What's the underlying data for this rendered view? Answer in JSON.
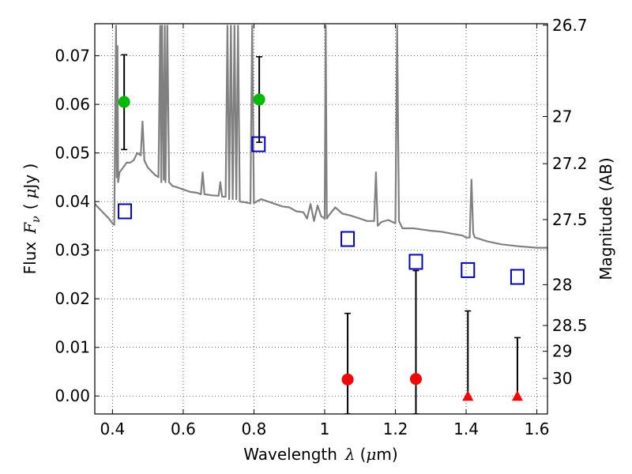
{
  "chart_data": {
    "type": "scatter",
    "xlabel": "Wavelength",
    "xlabel_symbol": "λ",
    "xlabel_unit_open": "(",
    "xlabel_unit": "μ",
    "xlabel_unit_rest": "m)",
    "ylabel": "Flux",
    "ylabel_symbol": "F",
    "ylabel_sub": "ν",
    "ylabel_unit_open": "(",
    "ylabel_unit_mu": "μ",
    "ylabel_unit_rest": "Jy )",
    "y2label": "Magnitude (AB)",
    "xlim": [
      0.35,
      1.63
    ],
    "ylim": [
      -0.0037,
      0.0766
    ],
    "grid": true,
    "x_ticks": [
      {
        "value": 0.4,
        "label": "0.4"
      },
      {
        "value": 0.6,
        "label": "0.6"
      },
      {
        "value": 0.8,
        "label": "0.8"
      },
      {
        "value": 1.0,
        "label": "1"
      },
      {
        "value": 1.2,
        "label": "1.2"
      },
      {
        "value": 1.4,
        "label": "1.4"
      },
      {
        "value": 1.6,
        "label": "1.6"
      }
    ],
    "y_ticks": [
      {
        "value": 0.0,
        "label": "0.00"
      },
      {
        "value": 0.01,
        "label": "0.01"
      },
      {
        "value": 0.02,
        "label": "0.02"
      },
      {
        "value": 0.03,
        "label": "0.03"
      },
      {
        "value": 0.04,
        "label": "0.04"
      },
      {
        "value": 0.05,
        "label": "0.05"
      },
      {
        "value": 0.06,
        "label": "0.06"
      },
      {
        "value": 0.07,
        "label": "0.07"
      }
    ],
    "y2_ticks": [
      {
        "flux": 0.0763,
        "label": "26.7"
      },
      {
        "flux": 0.0575,
        "label": "27"
      },
      {
        "flux": 0.0478,
        "label": "27.2"
      },
      {
        "flux": 0.0363,
        "label": "27.5"
      },
      {
        "flux": 0.0229,
        "label": "28"
      },
      {
        "flux": 0.0145,
        "label": "28.5"
      },
      {
        "flux": 0.0092,
        "label": "29"
      },
      {
        "flux": 0.0036,
        "label": "30"
      }
    ],
    "series": [
      {
        "name": "model_spectrum",
        "kind": "line",
        "color": "#808080",
        "x": [
          0.35,
          0.37,
          0.39,
          0.4,
          0.405,
          0.41,
          0.412,
          0.414,
          0.416,
          0.42,
          0.43,
          0.44,
          0.45,
          0.46,
          0.47,
          0.48,
          0.485,
          0.49,
          0.5,
          0.52,
          0.53,
          0.535,
          0.538,
          0.54,
          0.545,
          0.548,
          0.55,
          0.555,
          0.56,
          0.57,
          0.58,
          0.6,
          0.62,
          0.64,
          0.65,
          0.655,
          0.66,
          0.68,
          0.7,
          0.705,
          0.71,
          0.72,
          0.725,
          0.73,
          0.735,
          0.74,
          0.745,
          0.75,
          0.755,
          0.76,
          0.78,
          0.79,
          0.795,
          0.8,
          0.82,
          0.84,
          0.86,
          0.88,
          0.9,
          0.92,
          0.94,
          0.95,
          0.96,
          0.97,
          0.98,
          0.99,
          1.0,
          1.003,
          1.006,
          1.01,
          1.03,
          1.05,
          1.07,
          1.1,
          1.12,
          1.14,
          1.145,
          1.15,
          1.16,
          1.18,
          1.2,
          1.205,
          1.21,
          1.22,
          1.25,
          1.28,
          1.3,
          1.33,
          1.36,
          1.39,
          1.4,
          1.41,
          1.415,
          1.42,
          1.425,
          1.43,
          1.46,
          1.5,
          1.55,
          1.6,
          1.63
        ],
        "y": [
          0.0395,
          0.038,
          0.0365,
          0.0355,
          0.0352,
          0.0762,
          0.045,
          0.072,
          0.044,
          0.046,
          0.047,
          0.048,
          0.048,
          0.0485,
          0.05,
          0.0495,
          0.0565,
          0.0485,
          0.047,
          0.0455,
          0.045,
          0.0762,
          0.044,
          0.0762,
          0.0445,
          0.0762,
          0.044,
          0.0762,
          0.044,
          0.0432,
          0.043,
          0.0425,
          0.042,
          0.0418,
          0.0415,
          0.046,
          0.0415,
          0.0413,
          0.0412,
          0.044,
          0.041,
          0.041,
          0.0762,
          0.0405,
          0.0762,
          0.0405,
          0.0762,
          0.0405,
          0.0762,
          0.04,
          0.0398,
          0.0396,
          0.0762,
          0.0397,
          0.0405,
          0.04,
          0.0395,
          0.039,
          0.0388,
          0.038,
          0.0378,
          0.0365,
          0.0395,
          0.036,
          0.0392,
          0.037,
          0.0365,
          0.0762,
          0.0365,
          0.037,
          0.0388,
          0.0375,
          0.0372,
          0.0365,
          0.036,
          0.036,
          0.046,
          0.035,
          0.0358,
          0.0362,
          0.0355,
          0.0762,
          0.036,
          0.0345,
          0.0345,
          0.0342,
          0.034,
          0.0338,
          0.0334,
          0.033,
          0.0326,
          0.0326,
          0.0445,
          0.0335,
          0.0326,
          0.0325,
          0.0318,
          0.0312,
          0.0308,
          0.0305,
          0.0305
        ]
      },
      {
        "name": "detections",
        "kind": "points",
        "color": "#00bb00",
        "x": [
          0.433,
          0.815
        ],
        "y": [
          0.0605,
          0.061
        ],
        "err_low": [
          0.0507,
          0.0522
        ],
        "err_high": [
          0.0702,
          0.0698
        ]
      },
      {
        "name": "non_detections",
        "kind": "points",
        "color": "#ff0000",
        "x": [
          1.065,
          1.258
        ],
        "y": [
          0.0034,
          0.0035
        ],
        "err_low": [
          -0.0037,
          -0.0037
        ],
        "err_high": [
          0.017,
          0.0258
        ]
      },
      {
        "name": "upper_limits",
        "kind": "triangles",
        "color": "#ff0000",
        "x": [
          1.405,
          1.545
        ],
        "y": [
          0.0,
          0.0
        ],
        "err_low": [
          -0.0002,
          -0.0002
        ],
        "err_high": [
          0.0175,
          0.012
        ]
      },
      {
        "name": "model_photometry",
        "kind": "squares",
        "color": "#0000cc",
        "x": [
          0.435,
          0.813,
          1.065,
          1.258,
          1.405,
          1.545
        ],
        "y": [
          0.038,
          0.0518,
          0.0323,
          0.0276,
          0.0259,
          0.0245
        ]
      }
    ]
  }
}
